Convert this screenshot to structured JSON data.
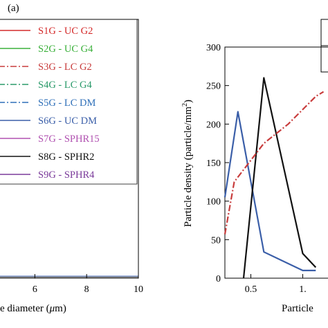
{
  "panel_label": "(a)",
  "chart_data": [
    {
      "type": "line",
      "title": "",
      "xlabel": "diameter (μm)",
      "xlabel_prefix": "e diameter (",
      "xlabel_mu": "μ",
      "xlabel_suffix": "m)",
      "xticks": [
        "6",
        "8",
        "10"
      ],
      "xlim": [
        4.6,
        10
      ],
      "legend": "left",
      "series": [
        {
          "name": "S1G - UC G2",
          "color": "#d42a2a",
          "dash": "solid"
        },
        {
          "name": "S2G - UC G4",
          "color": "#3ab03a",
          "dash": "solid"
        },
        {
          "name": "S3G - LC G2",
          "color": "#c83c3c",
          "dash": "dashdot"
        },
        {
          "name": "S4G - LC G4",
          "color": "#2a9a6a",
          "dash": "dashdot"
        },
        {
          "name": "S5G - LC DM",
          "color": "#2e6fb8",
          "dash": "dashdot"
        },
        {
          "name": "S6G - UC DM",
          "color": "#3a5ea8",
          "dash": "solid"
        },
        {
          "name": "S7G - SPHR15",
          "color": "#b050b0",
          "dash": "solid"
        },
        {
          "name": "S8G - SPHR2",
          "color": "#111111",
          "dash": "solid"
        },
        {
          "name": "S9G - SPHR4",
          "color": "#7a3a9a",
          "dash": "solid"
        }
      ]
    },
    {
      "type": "line",
      "title": "",
      "xlabel": "Particle",
      "ylabel": "Particle density (particle/mm²)",
      "ylabel_main": "Particle density (particle/mm",
      "ylabel_sup": "2",
      "ylabel_end": ")",
      "xlim": [
        0.25,
        1.25
      ],
      "ylim": [
        0,
        300
      ],
      "xticks": [
        "0.5",
        "1."
      ],
      "yticks": [
        "0",
        "50",
        "100",
        "150",
        "200",
        "250",
        "300"
      ],
      "series": [
        {
          "name": "S6G - UC DM",
          "color": "#3a5ea8",
          "dash": "solid",
          "x": [
            0.25,
            0.375,
            0.625,
            1.0,
            1.125
          ],
          "y": [
            105,
            216,
            34,
            10,
            10
          ]
        },
        {
          "name": "S8G - SPHR2",
          "color": "#111111",
          "dash": "solid",
          "x": [
            0.43,
            0.625,
            1.0,
            1.125
          ],
          "y": [
            0,
            260,
            32,
            14
          ]
        },
        {
          "name": "S3G - LC G2",
          "color": "#c83c3c",
          "dash": "dashdot",
          "x": [
            0.25,
            0.34,
            0.625,
            0.86,
            1.125,
            1.2
          ],
          "y": [
            57,
            125,
            175,
            200,
            236,
            242
          ]
        }
      ]
    }
  ]
}
